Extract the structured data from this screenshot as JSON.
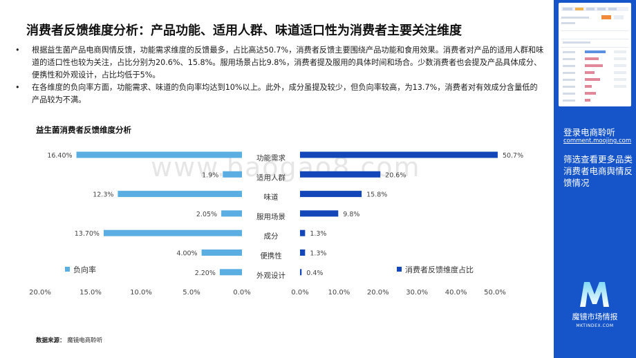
{
  "page": {
    "title": "消费者反馈维度分析：产品功能、适用人群、味道适口性为消费者主要关注维度",
    "bullets": [
      "根据益生菌产品电商舆情反馈，功能需求维度的反馈最多，占比高达50.7%，消费者反馈主要围绕产品功能和食用效果。消费者对产品的适用人群和味道的适口性也较为关注，占比分别为20.6%、15.8%。服用场景占比9.8%，消费者提及服用的具体时间和场合。少数消费者也会提及产品具体成分、便携性和外观设计，占比均低于5%。",
      "在各维度的负向率方面，功能需求、味道的负向率均达到10%以上。此外，成分虽提及较少，但负向率较高，为13.7%，消费者对有效成分含量低的产品较为不满。"
    ],
    "bullet_symbol": "•",
    "watermark": "www.baogao8.com",
    "source_label": "数据来源：",
    "source_value": "魔镜电商聆听"
  },
  "sidebar": {
    "text1": "登录电商聆听",
    "url": "comment.moojing.com",
    "text2": "筛选查看更多品类消费者电商舆情反馈情况",
    "logo_name": "魔镜市场情报",
    "logo_sub": "MKTINDEX.COM",
    "bg_color": "#1554c9"
  },
  "chart_data": {
    "type": "bar",
    "title": "益生菌消费者反馈维度分析",
    "categories": [
      "功能需求",
      "适用人群",
      "味道",
      "服用场景",
      "成分",
      "便携性",
      "外观设计"
    ],
    "series": [
      {
        "name": "负向率",
        "color": "#5aaee2",
        "values": [
          16.4,
          1.9,
          12.3,
          2.05,
          13.7,
          4.0,
          2.2
        ],
        "labels": [
          "16.40%",
          "1.9%",
          "12.3%",
          "2.05%",
          "13.70%",
          "4.00%",
          "2.20%"
        ],
        "axis_range": [
          0,
          20
        ],
        "ticks": [
          "20.0%",
          "15.0%",
          "10.0%",
          "5.0%",
          "0.0%"
        ]
      },
      {
        "name": "消费者反馈维度占比",
        "color": "#1346b8",
        "values": [
          50.7,
          20.6,
          15.8,
          9.8,
          1.3,
          1.3,
          0.4
        ],
        "labels": [
          "50.7%",
          "20.6%",
          "15.8%",
          "9.8%",
          "1.3%",
          "1.3%",
          "0.4%"
        ],
        "axis_range": [
          0,
          50
        ],
        "ticks": [
          "0.0%",
          "10.0%",
          "20.0%",
          "30.0%",
          "40.0%",
          "50.0%"
        ]
      }
    ],
    "grid": false,
    "legend": "bottom-left / bottom-right"
  }
}
